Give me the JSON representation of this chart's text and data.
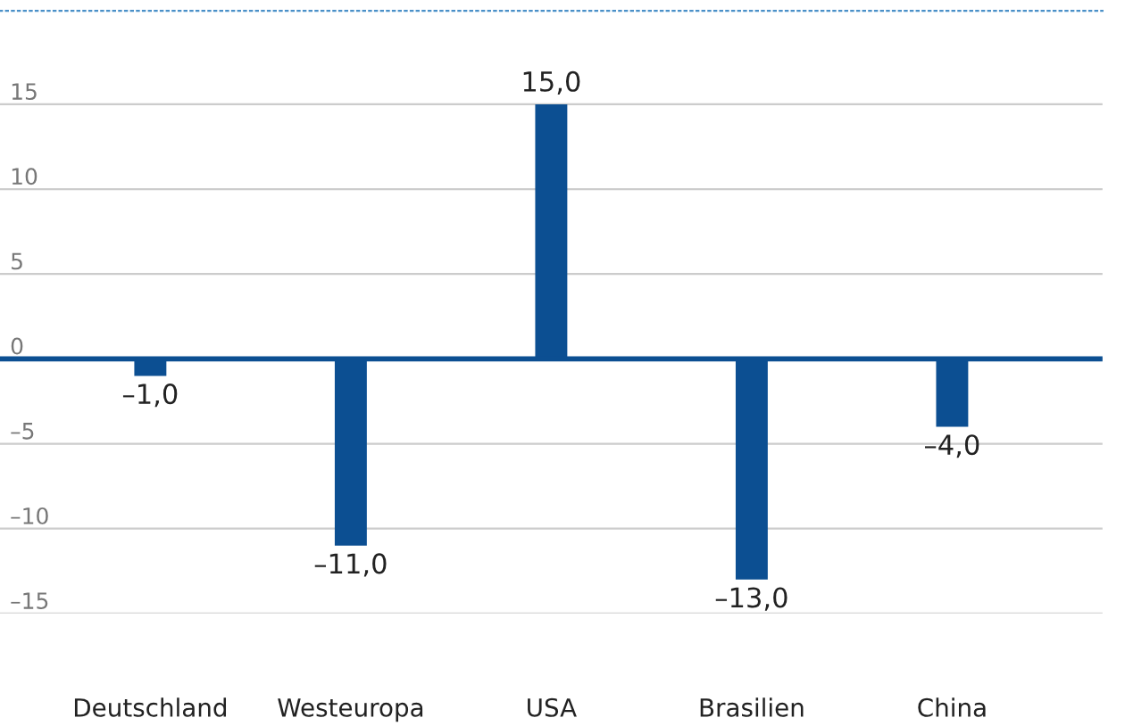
{
  "chart_data": {
    "type": "bar",
    "categories": [
      "Deutschland",
      "Westeuropa",
      "USA",
      "Brasilien",
      "China"
    ],
    "values": [
      -1.0,
      -11.0,
      15.0,
      -13.0,
      -4.0
    ],
    "color": "#0c4f92",
    "value_labels": [
      "–1,0",
      "–11,0",
      "15,0",
      "–13,0",
      "–4,0"
    ],
    "ylim": [
      -15,
      20.5
    ],
    "yticks": [
      {
        "value": -15,
        "label": "–15"
      },
      {
        "value": -10,
        "label": "–10"
      },
      {
        "value": -5,
        "label": "–5"
      },
      0,
      5,
      10,
      15
    ],
    "ref_lines": [
      {
        "axis": "y",
        "value": 0,
        "color": "#0c4f92"
      }
    ],
    "grid": "y"
  }
}
